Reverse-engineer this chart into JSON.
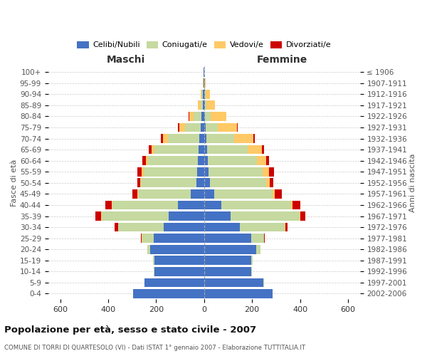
{
  "age_groups": [
    "100+",
    "95-99",
    "90-94",
    "85-89",
    "80-84",
    "75-79",
    "70-74",
    "65-69",
    "60-64",
    "55-59",
    "50-54",
    "45-49",
    "40-44",
    "35-39",
    "30-34",
    "25-29",
    "20-24",
    "15-19",
    "10-14",
    "5-9",
    "0-4"
  ],
  "birth_years": [
    "≤ 1906",
    "1907-1911",
    "1912-1916",
    "1917-1921",
    "1922-1926",
    "1927-1931",
    "1932-1936",
    "1937-1941",
    "1942-1946",
    "1947-1951",
    "1952-1956",
    "1957-1961",
    "1962-1966",
    "1967-1971",
    "1972-1976",
    "1977-1981",
    "1982-1986",
    "1987-1991",
    "1992-1996",
    "1997-2001",
    "2002-2006"
  ],
  "maschi_celibi": [
    1,
    2,
    4,
    5,
    10,
    15,
    20,
    22,
    25,
    28,
    32,
    55,
    108,
    148,
    168,
    210,
    225,
    208,
    208,
    248,
    295
  ],
  "maschi_coniugati": [
    0,
    1,
    6,
    10,
    35,
    65,
    130,
    185,
    210,
    225,
    230,
    220,
    275,
    280,
    190,
    48,
    12,
    4,
    2,
    1,
    0
  ],
  "maschi_vedovi": [
    0,
    1,
    4,
    10,
    18,
    22,
    22,
    12,
    9,
    6,
    3,
    2,
    2,
    2,
    1,
    1,
    0,
    0,
    0,
    0,
    0
  ],
  "maschi_divorziati": [
    0,
    0,
    0,
    1,
    2,
    6,
    9,
    12,
    14,
    20,
    12,
    22,
    28,
    22,
    14,
    3,
    0,
    0,
    0,
    0,
    0
  ],
  "femmine_celibi": [
    1,
    1,
    3,
    4,
    5,
    8,
    10,
    13,
    16,
    20,
    24,
    42,
    72,
    112,
    148,
    198,
    218,
    198,
    198,
    248,
    285
  ],
  "femmine_coniugati": [
    0,
    1,
    4,
    6,
    22,
    48,
    115,
    170,
    205,
    225,
    235,
    245,
    290,
    285,
    188,
    52,
    16,
    4,
    2,
    1,
    0
  ],
  "femmine_vedovi": [
    1,
    4,
    18,
    35,
    65,
    80,
    80,
    58,
    38,
    27,
    14,
    9,
    6,
    4,
    2,
    1,
    0,
    0,
    0,
    0,
    0
  ],
  "femmine_divorziati": [
    0,
    0,
    0,
    1,
    2,
    4,
    7,
    9,
    11,
    20,
    17,
    27,
    32,
    22,
    9,
    2,
    0,
    0,
    0,
    0,
    0
  ],
  "color_celibi": "#4472c4",
  "color_coniugati": "#c5d9a0",
  "color_vedovi": "#ffc966",
  "color_divorziati": "#cc0000",
  "xlim": 650,
  "title": "Popolazione per età, sesso e stato civile - 2007",
  "subtitle": "COMUNE DI TORRI DI QUARTESOLO (VI) - Dati ISTAT 1° gennaio 2007 - Elaborazione TUTTITALIA.IT",
  "ylabel_left": "Fasce di età",
  "ylabel_right": "Anni di nascita"
}
